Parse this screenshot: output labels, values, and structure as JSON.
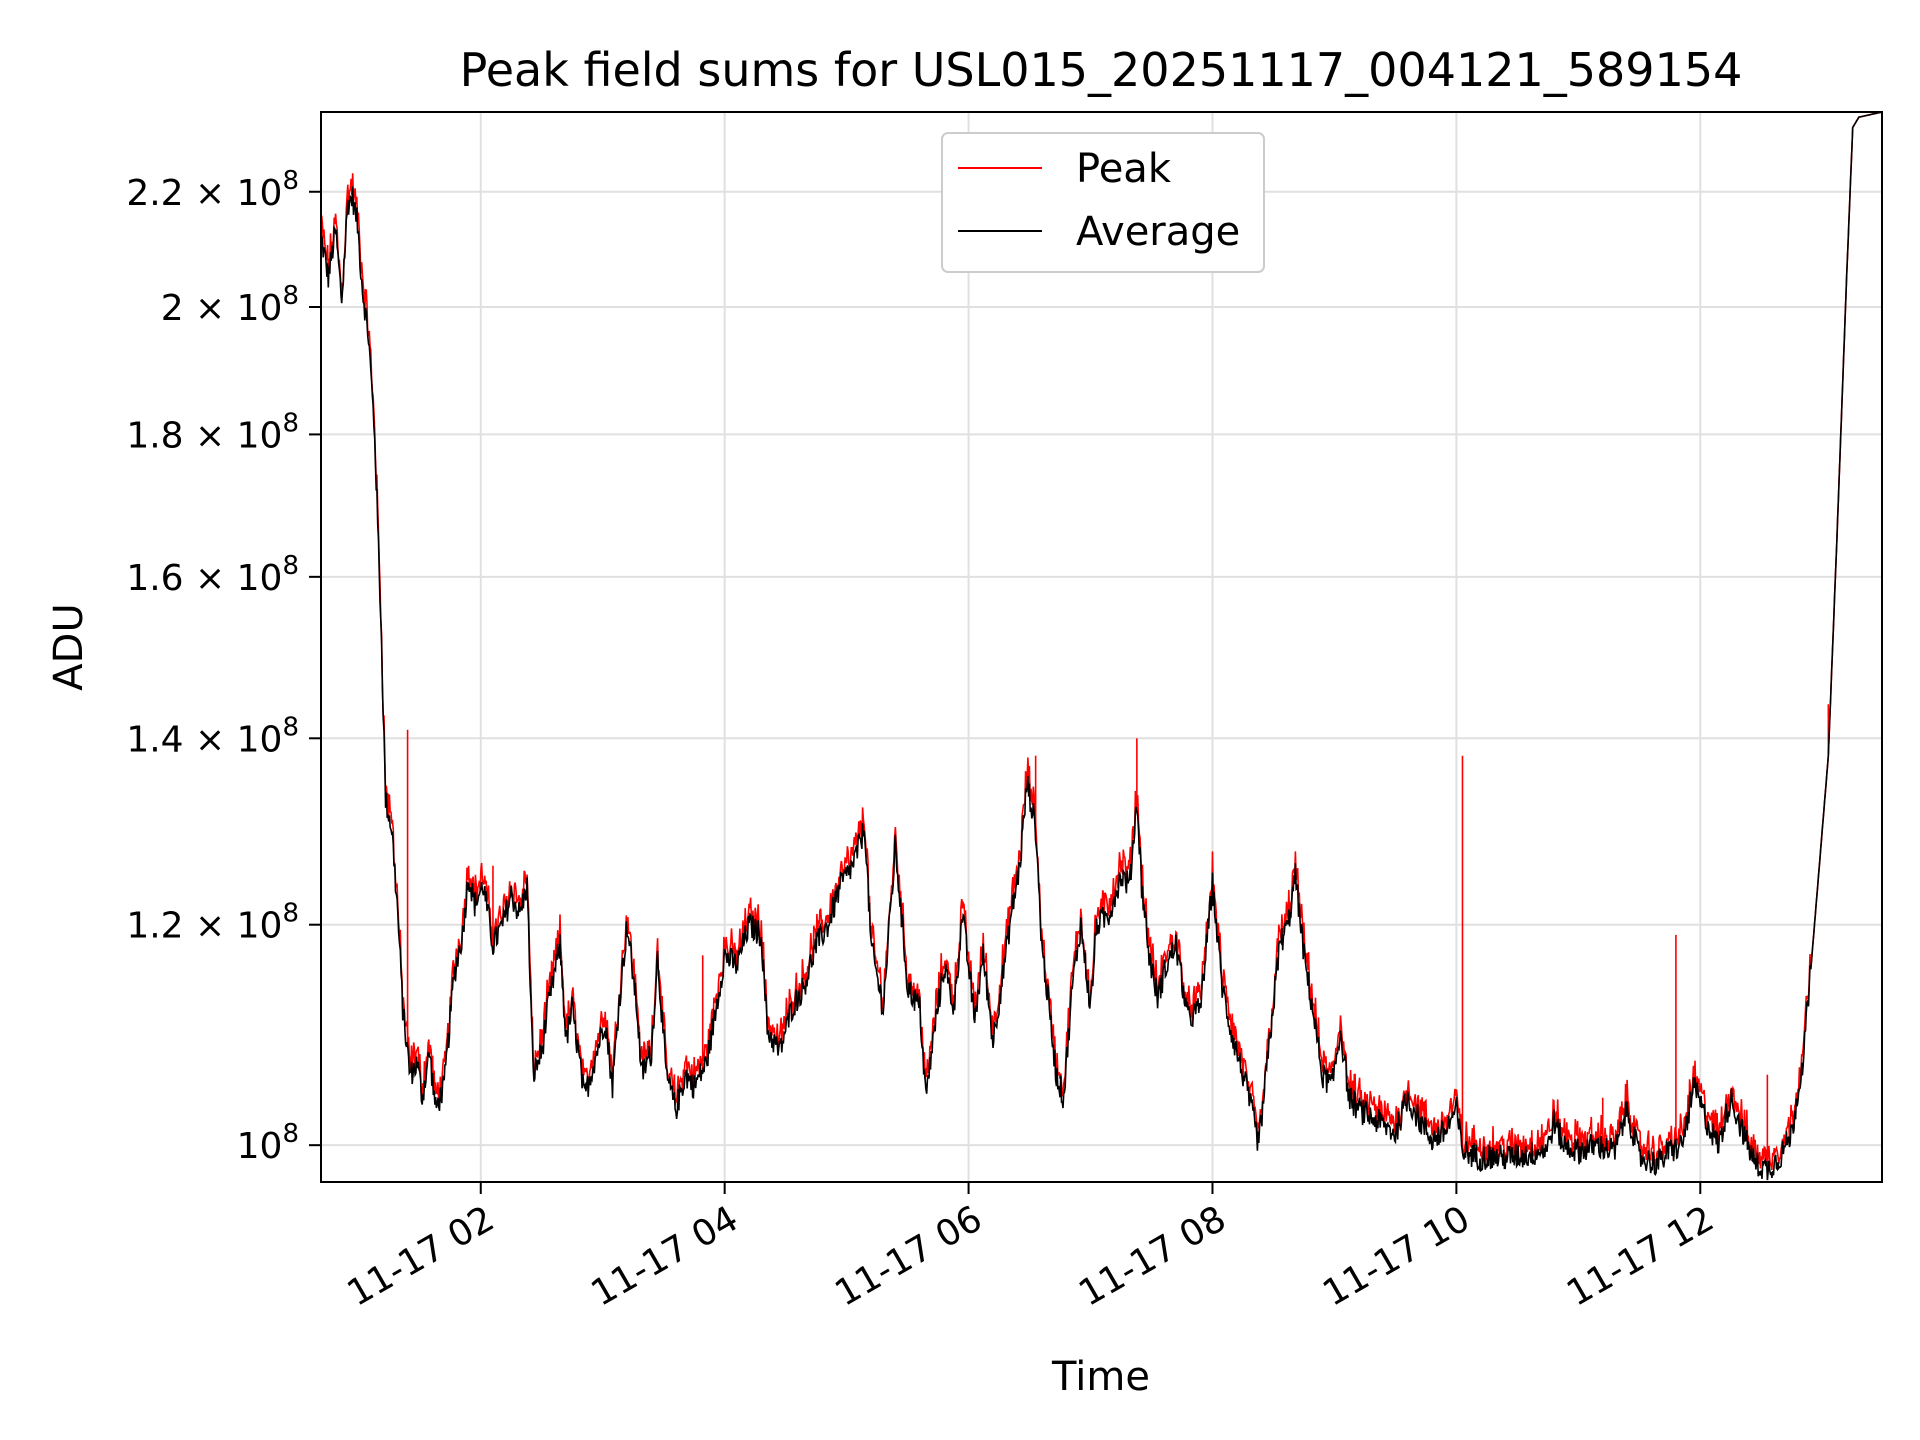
{
  "chart_data": {
    "type": "line",
    "title": "Peak field sums for USL015_20251117_004121_589154",
    "xlabel": "Time",
    "ylabel": "ADU",
    "yscale": "log",
    "ylim": [
      97000000,
      235000000
    ],
    "xlim_hours": [
      0.69,
      13.49
    ],
    "x_ticks": [
      {
        "hour": 2,
        "label": "11-17 02"
      },
      {
        "hour": 4,
        "label": "11-17 04"
      },
      {
        "hour": 6,
        "label": "11-17 06"
      },
      {
        "hour": 8,
        "label": "11-17 08"
      },
      {
        "hour": 10,
        "label": "11-17 10"
      },
      {
        "hour": 12,
        "label": "11-17 12"
      }
    ],
    "y_ticks": [
      {
        "value": 100000000,
        "mant": "",
        "exp": "8"
      },
      {
        "value": 120000000,
        "mant": "1.2",
        "exp": "8"
      },
      {
        "value": 140000000,
        "mant": "1.4",
        "exp": "8"
      },
      {
        "value": 160000000,
        "mant": "1.6",
        "exp": "8"
      },
      {
        "value": 180000000,
        "mant": "1.8",
        "exp": "8"
      },
      {
        "value": 200000000,
        "mant": "2",
        "exp": "8"
      },
      {
        "value": 220000000,
        "mant": "2.2",
        "exp": "8"
      }
    ],
    "grid": true,
    "legend_position": "top-center",
    "series": [
      {
        "name": "Peak",
        "color": "#ff0000"
      },
      {
        "name": "Average",
        "color": "#000000"
      }
    ],
    "average_keypoints": [
      [
        0.69,
        212000000
      ],
      [
        0.75,
        205000000
      ],
      [
        0.81,
        213000000
      ],
      [
        0.86,
        201000000
      ],
      [
        0.91,
        218000000
      ],
      [
        0.95,
        219000000
      ],
      [
        0.99,
        214000000
      ],
      [
        1.03,
        203000000
      ],
      [
        1.08,
        195000000
      ],
      [
        1.13,
        180000000
      ],
      [
        1.18,
        155000000
      ],
      [
        1.22,
        133000000
      ],
      [
        1.27,
        130000000
      ],
      [
        1.32,
        121000000
      ],
      [
        1.36,
        112000000
      ],
      [
        1.42,
        106000000
      ],
      [
        1.48,
        107000000
      ],
      [
        1.52,
        104000000
      ],
      [
        1.58,
        108000000
      ],
      [
        1.63,
        103000000
      ],
      [
        1.7,
        105000000
      ],
      [
        1.78,
        115000000
      ],
      [
        1.85,
        119000000
      ],
      [
        1.9,
        125000000
      ],
      [
        1.95,
        122000000
      ],
      [
        2.02,
        124000000
      ],
      [
        2.1,
        118000000
      ],
      [
        2.18,
        120000000
      ],
      [
        2.25,
        123000000
      ],
      [
        2.32,
        121000000
      ],
      [
        2.38,
        124000000
      ],
      [
        2.43,
        106000000
      ],
      [
        2.5,
        108000000
      ],
      [
        2.55,
        112000000
      ],
      [
        2.6,
        115000000
      ],
      [
        2.65,
        118000000
      ],
      [
        2.7,
        109000000
      ],
      [
        2.75,
        112000000
      ],
      [
        2.85,
        104000000
      ],
      [
        2.95,
        108000000
      ],
      [
        3.02,
        111000000
      ],
      [
        3.08,
        105000000
      ],
      [
        3.13,
        112000000
      ],
      [
        3.2,
        120000000
      ],
      [
        3.28,
        112000000
      ],
      [
        3.32,
        106000000
      ],
      [
        3.4,
        108000000
      ],
      [
        3.45,
        117000000
      ],
      [
        3.52,
        106000000
      ],
      [
        3.6,
        103000000
      ],
      [
        3.68,
        106000000
      ],
      [
        3.75,
        105000000
      ],
      [
        3.85,
        107000000
      ],
      [
        3.93,
        112000000
      ],
      [
        4.0,
        117000000
      ],
      [
        4.1,
        116000000
      ],
      [
        4.2,
        120000000
      ],
      [
        4.3,
        119000000
      ],
      [
        4.35,
        110000000
      ],
      [
        4.45,
        108000000
      ],
      [
        4.55,
        112000000
      ],
      [
        4.65,
        114000000
      ],
      [
        4.75,
        118000000
      ],
      [
        4.85,
        120000000
      ],
      [
        4.95,
        124000000
      ],
      [
        5.05,
        126000000
      ],
      [
        5.15,
        130000000
      ],
      [
        5.2,
        118000000
      ],
      [
        5.3,
        112000000
      ],
      [
        5.4,
        128000000
      ],
      [
        5.5,
        114000000
      ],
      [
        5.6,
        112000000
      ],
      [
        5.65,
        104000000
      ],
      [
        5.72,
        110000000
      ],
      [
        5.8,
        116000000
      ],
      [
        5.88,
        112000000
      ],
      [
        5.95,
        121000000
      ],
      [
        6.05,
        111000000
      ],
      [
        6.12,
        117000000
      ],
      [
        6.2,
        109000000
      ],
      [
        6.28,
        115000000
      ],
      [
        6.35,
        121000000
      ],
      [
        6.42,
        126000000
      ],
      [
        6.48,
        135000000
      ],
      [
        6.55,
        130000000
      ],
      [
        6.6,
        118000000
      ],
      [
        6.65,
        113000000
      ],
      [
        6.72,
        106000000
      ],
      [
        6.78,
        104000000
      ],
      [
        6.85,
        114000000
      ],
      [
        6.92,
        120000000
      ],
      [
        7.0,
        112000000
      ],
      [
        7.05,
        120000000
      ],
      [
        7.15,
        121000000
      ],
      [
        7.25,
        125000000
      ],
      [
        7.32,
        124000000
      ],
      [
        7.38,
        133000000
      ],
      [
        7.42,
        124000000
      ],
      [
        7.48,
        117000000
      ],
      [
        7.55,
        113000000
      ],
      [
        7.62,
        116000000
      ],
      [
        7.7,
        118000000
      ],
      [
        7.8,
        111000000
      ],
      [
        7.9,
        112000000
      ],
      [
        8.0,
        124000000
      ],
      [
        8.08,
        114000000
      ],
      [
        8.15,
        110000000
      ],
      [
        8.25,
        106000000
      ],
      [
        8.32,
        103000000
      ],
      [
        8.38,
        100000000
      ],
      [
        8.45,
        107000000
      ],
      [
        8.55,
        118000000
      ],
      [
        8.62,
        120000000
      ],
      [
        8.68,
        125000000
      ],
      [
        8.75,
        117000000
      ],
      [
        8.82,
        112000000
      ],
      [
        8.9,
        106000000
      ],
      [
        8.98,
        105000000
      ],
      [
        9.05,
        110000000
      ],
      [
        9.12,
        104000000
      ],
      [
        9.2,
        103000000
      ],
      [
        9.35,
        102000000
      ],
      [
        9.5,
        101000000
      ],
      [
        9.6,
        104000000
      ],
      [
        9.7,
        102000000
      ],
      [
        9.8,
        100500000
      ],
      [
        9.9,
        101000000
      ],
      [
        10.0,
        103000000
      ],
      [
        10.05,
        99500000
      ],
      [
        10.2,
        99000000
      ],
      [
        10.4,
        99000000
      ],
      [
        10.6,
        99200000
      ],
      [
        10.75,
        99800000
      ],
      [
        10.8,
        102000000
      ],
      [
        10.88,
        100000000
      ],
      [
        11.0,
        99500000
      ],
      [
        11.15,
        100000000
      ],
      [
        11.3,
        99500000
      ],
      [
        11.4,
        103000000
      ],
      [
        11.5,
        99000000
      ],
      [
        11.65,
        98500000
      ],
      [
        11.75,
        99500000
      ],
      [
        11.85,
        100000000
      ],
      [
        11.95,
        105000000
      ],
      [
        12.05,
        102000000
      ],
      [
        12.15,
        100000000
      ],
      [
        12.25,
        104000000
      ],
      [
        12.35,
        101000000
      ],
      [
        12.45,
        98500000
      ],
      [
        12.55,
        98000000
      ],
      [
        12.65,
        99000000
      ],
      [
        12.75,
        101000000
      ],
      [
        12.85,
        108000000
      ],
      [
        12.95,
        122000000
      ],
      [
        13.05,
        138000000
      ],
      [
        13.12,
        165000000
      ],
      [
        13.2,
        205000000
      ],
      [
        13.25,
        232000000
      ],
      [
        13.3,
        234000000
      ],
      [
        13.49,
        235000000
      ]
    ],
    "peak_spikes": [
      [
        1.4,
        141000000
      ],
      [
        2.1,
        126000000
      ],
      [
        3.82,
        117000000
      ],
      [
        6.55,
        138000000
      ],
      [
        7.38,
        140000000
      ],
      [
        10.05,
        138000000
      ],
      [
        11.8,
        119000000
      ],
      [
        12.55,
        106000000
      ],
      [
        13.05,
        144000000
      ],
      [
        11.2,
        104000000
      ]
    ]
  }
}
